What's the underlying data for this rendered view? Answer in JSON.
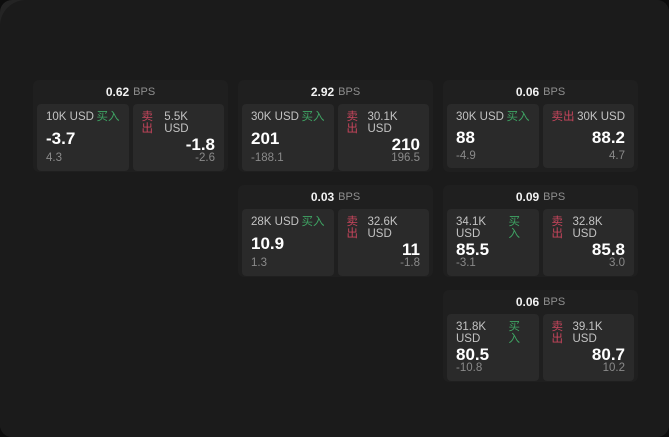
{
  "app": {
    "surface_color": "#1b1b1b",
    "card_color": "#1f1f1f",
    "panel_color": "#2a2a2a",
    "buy_color": "#3fa564",
    "sell_color": "#c8455c"
  },
  "labels": {
    "bps_unit": "BPS",
    "buy": "买入",
    "sell": "卖出"
  },
  "cards": [
    {
      "bps": "0.62",
      "buy": {
        "amount": "10K USD",
        "price": "-3.7",
        "sub": "4.3"
      },
      "sell": {
        "amount": "5.5K USD",
        "price": "-1.8",
        "sub": "-2.6"
      }
    },
    {
      "bps": "2.92",
      "buy": {
        "amount": "30K USD",
        "price": "201",
        "sub": "-188.1"
      },
      "sell": {
        "amount": "30.1K USD",
        "price": "210",
        "sub": "196.5"
      }
    },
    {
      "bps": "0.06",
      "buy": {
        "amount": "30K USD",
        "price": "88",
        "sub": "-4.9"
      },
      "sell": {
        "amount": "30K USD",
        "price": "88.2",
        "sub": "4.7"
      }
    },
    {
      "bps": "0.03",
      "buy": {
        "amount": "28K USD",
        "price": "10.9",
        "sub": "1.3"
      },
      "sell": {
        "amount": "32.6K USD",
        "price": "11",
        "sub": "-1.8"
      }
    },
    {
      "bps": "0.09",
      "buy": {
        "amount": "34.1K USD",
        "price": "85.5",
        "sub": "-3.1"
      },
      "sell": {
        "amount": "32.8K USD",
        "price": "85.8",
        "sub": "3.0"
      }
    },
    {
      "bps": "0.06",
      "buy": {
        "amount": "31.8K USD",
        "price": "80.5",
        "sub": "-10.8"
      },
      "sell": {
        "amount": "39.1K USD",
        "price": "80.7",
        "sub": "10.2"
      }
    }
  ]
}
